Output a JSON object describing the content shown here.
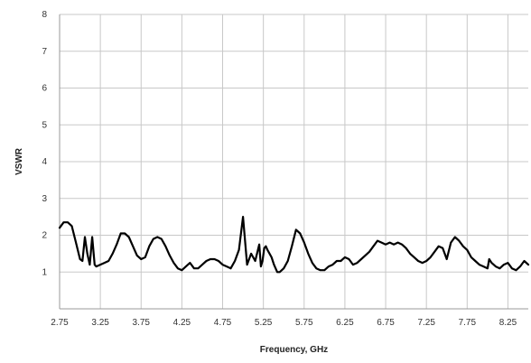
{
  "chart_data": {
    "type": "line",
    "title": "",
    "xlabel": "Frequency, GHz",
    "ylabel": "VSWR",
    "xlim": [
      2.75,
      8.5
    ],
    "ylim": [
      0,
      8
    ],
    "x_ticks": [
      2.75,
      3.25,
      3.75,
      4.25,
      4.75,
      5.25,
      5.75,
      6.25,
      6.75,
      7.25,
      7.75,
      8.25
    ],
    "x_tick_labels": [
      "2.75",
      "3.25",
      "3.75",
      "4.25",
      "4.75",
      "5.25",
      "5.75",
      "6.25",
      "6.75",
      "7.25",
      "7.75",
      "8.25"
    ],
    "y_ticks": [
      1,
      2,
      3,
      4,
      5,
      6,
      7,
      8
    ],
    "y_tick_labels": [
      "1",
      "2",
      "3",
      "4",
      "5",
      "6",
      "7",
      "8"
    ],
    "grid": true,
    "legend": "none",
    "line_color": "#000000",
    "series": [
      {
        "x": [
          2.75,
          2.8,
          2.85,
          2.9,
          2.95,
          3.0,
          3.03,
          3.06,
          3.09,
          3.12,
          3.15,
          3.18,
          3.2,
          3.25,
          3.3,
          3.35,
          3.4,
          3.45,
          3.5,
          3.55,
          3.6,
          3.65,
          3.7,
          3.75,
          3.8,
          3.85,
          3.9,
          3.95,
          4.0,
          4.05,
          4.1,
          4.15,
          4.2,
          4.25,
          4.3,
          4.35,
          4.4,
          4.45,
          4.5,
          4.55,
          4.6,
          4.65,
          4.7,
          4.75,
          4.8,
          4.85,
          4.9,
          4.95,
          5.0,
          5.05,
          5.1,
          5.15,
          5.2,
          5.22,
          5.24,
          5.26,
          5.28,
          5.3,
          5.35,
          5.38,
          5.4,
          5.42,
          5.45,
          5.5,
          5.55,
          5.6,
          5.65,
          5.7,
          5.75,
          5.8,
          5.85,
          5.9,
          5.95,
          6.0,
          6.05,
          6.1,
          6.15,
          6.2,
          6.25,
          6.3,
          6.35,
          6.4,
          6.45,
          6.5,
          6.55,
          6.6,
          6.65,
          6.7,
          6.75,
          6.8,
          6.85,
          6.9,
          6.95,
          7.0,
          7.05,
          7.1,
          7.15,
          7.2,
          7.25,
          7.3,
          7.35,
          7.4,
          7.45,
          7.5,
          7.55,
          7.6,
          7.65,
          7.7,
          7.75,
          7.8,
          7.85,
          7.9,
          7.95,
          8.0,
          8.02,
          8.05,
          8.1,
          8.15,
          8.2,
          8.25,
          8.3,
          8.35,
          8.4,
          8.45,
          8.5
        ],
        "y": [
          2.2,
          2.35,
          2.35,
          2.25,
          1.8,
          1.35,
          1.3,
          1.95,
          1.5,
          1.2,
          1.95,
          1.2,
          1.15,
          1.2,
          1.25,
          1.3,
          1.5,
          1.75,
          2.05,
          2.05,
          1.95,
          1.7,
          1.45,
          1.35,
          1.4,
          1.7,
          1.9,
          1.95,
          1.9,
          1.7,
          1.45,
          1.25,
          1.1,
          1.05,
          1.15,
          1.25,
          1.1,
          1.1,
          1.2,
          1.3,
          1.35,
          1.35,
          1.3,
          1.2,
          1.15,
          1.1,
          1.3,
          1.6,
          2.5,
          1.2,
          1.5,
          1.3,
          1.75,
          1.15,
          1.3,
          1.65,
          1.7,
          1.6,
          1.4,
          1.2,
          1.1,
          1.0,
          1.0,
          1.1,
          1.3,
          1.7,
          2.15,
          2.05,
          1.8,
          1.5,
          1.25,
          1.1,
          1.05,
          1.05,
          1.15,
          1.2,
          1.3,
          1.3,
          1.4,
          1.35,
          1.2,
          1.25,
          1.35,
          1.45,
          1.55,
          1.7,
          1.85,
          1.8,
          1.75,
          1.8,
          1.75,
          1.8,
          1.75,
          1.65,
          1.5,
          1.4,
          1.3,
          1.25,
          1.3,
          1.4,
          1.55,
          1.7,
          1.65,
          1.35,
          1.8,
          1.95,
          1.85,
          1.7,
          1.6,
          1.4,
          1.3,
          1.2,
          1.15,
          1.1,
          1.35,
          1.25,
          1.15,
          1.1,
          1.2,
          1.25,
          1.1,
          1.05,
          1.15,
          1.3,
          1.2
        ]
      }
    ]
  }
}
